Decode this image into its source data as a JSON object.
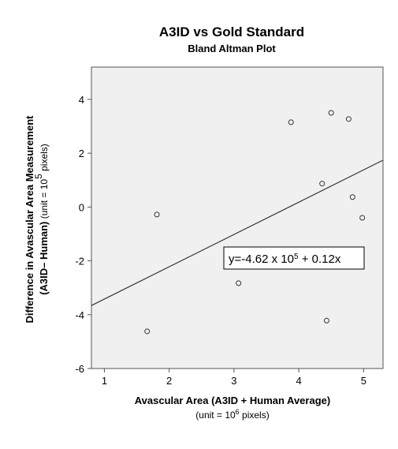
{
  "chart_data": {
    "type": "scatter",
    "title": "A3ID vs Gold Standard",
    "subtitle": "Bland Altman Plot",
    "xlabel": "Avascular Area (A3ID + Human Average)",
    "xlabel_unit_prefix": "(unit = 10",
    "xlabel_unit_exp": "6",
    "xlabel_unit_suffix": " pixels)",
    "ylabel_line1": "Difference in Avascular Area Measurement",
    "ylabel_line2_bold": "(A3ID– Human)",
    "ylabel_unit_prefix": " (unit = 10",
    "ylabel_unit_exp": "5",
    "ylabel_unit_suffix": " pixels)",
    "xlim": [
      0.8,
      5.3
    ],
    "ylim": [
      -6,
      5.2
    ],
    "xticks": [
      1,
      2,
      3,
      4,
      5
    ],
    "yticks": [
      -6,
      -4,
      -2,
      0,
      2,
      4
    ],
    "grid": false,
    "points": [
      {
        "x": 1.66,
        "y": -4.62
      },
      {
        "x": 1.81,
        "y": -0.28
      },
      {
        "x": 3.07,
        "y": -2.83
      },
      {
        "x": 3.88,
        "y": 3.15
      },
      {
        "x": 4.36,
        "y": 0.87
      },
      {
        "x": 4.43,
        "y": -4.22
      },
      {
        "x": 4.5,
        "y": 3.5
      },
      {
        "x": 4.77,
        "y": 3.27
      },
      {
        "x": 4.83,
        "y": 0.37
      },
      {
        "x": 4.98,
        "y": -0.4
      }
    ],
    "fit_line": {
      "slope": 1.2,
      "intercept": -4.62,
      "label_prefix": "y=-4.62 x 10",
      "label_exp": "5",
      "label_suffix": " + 0.12x"
    }
  }
}
